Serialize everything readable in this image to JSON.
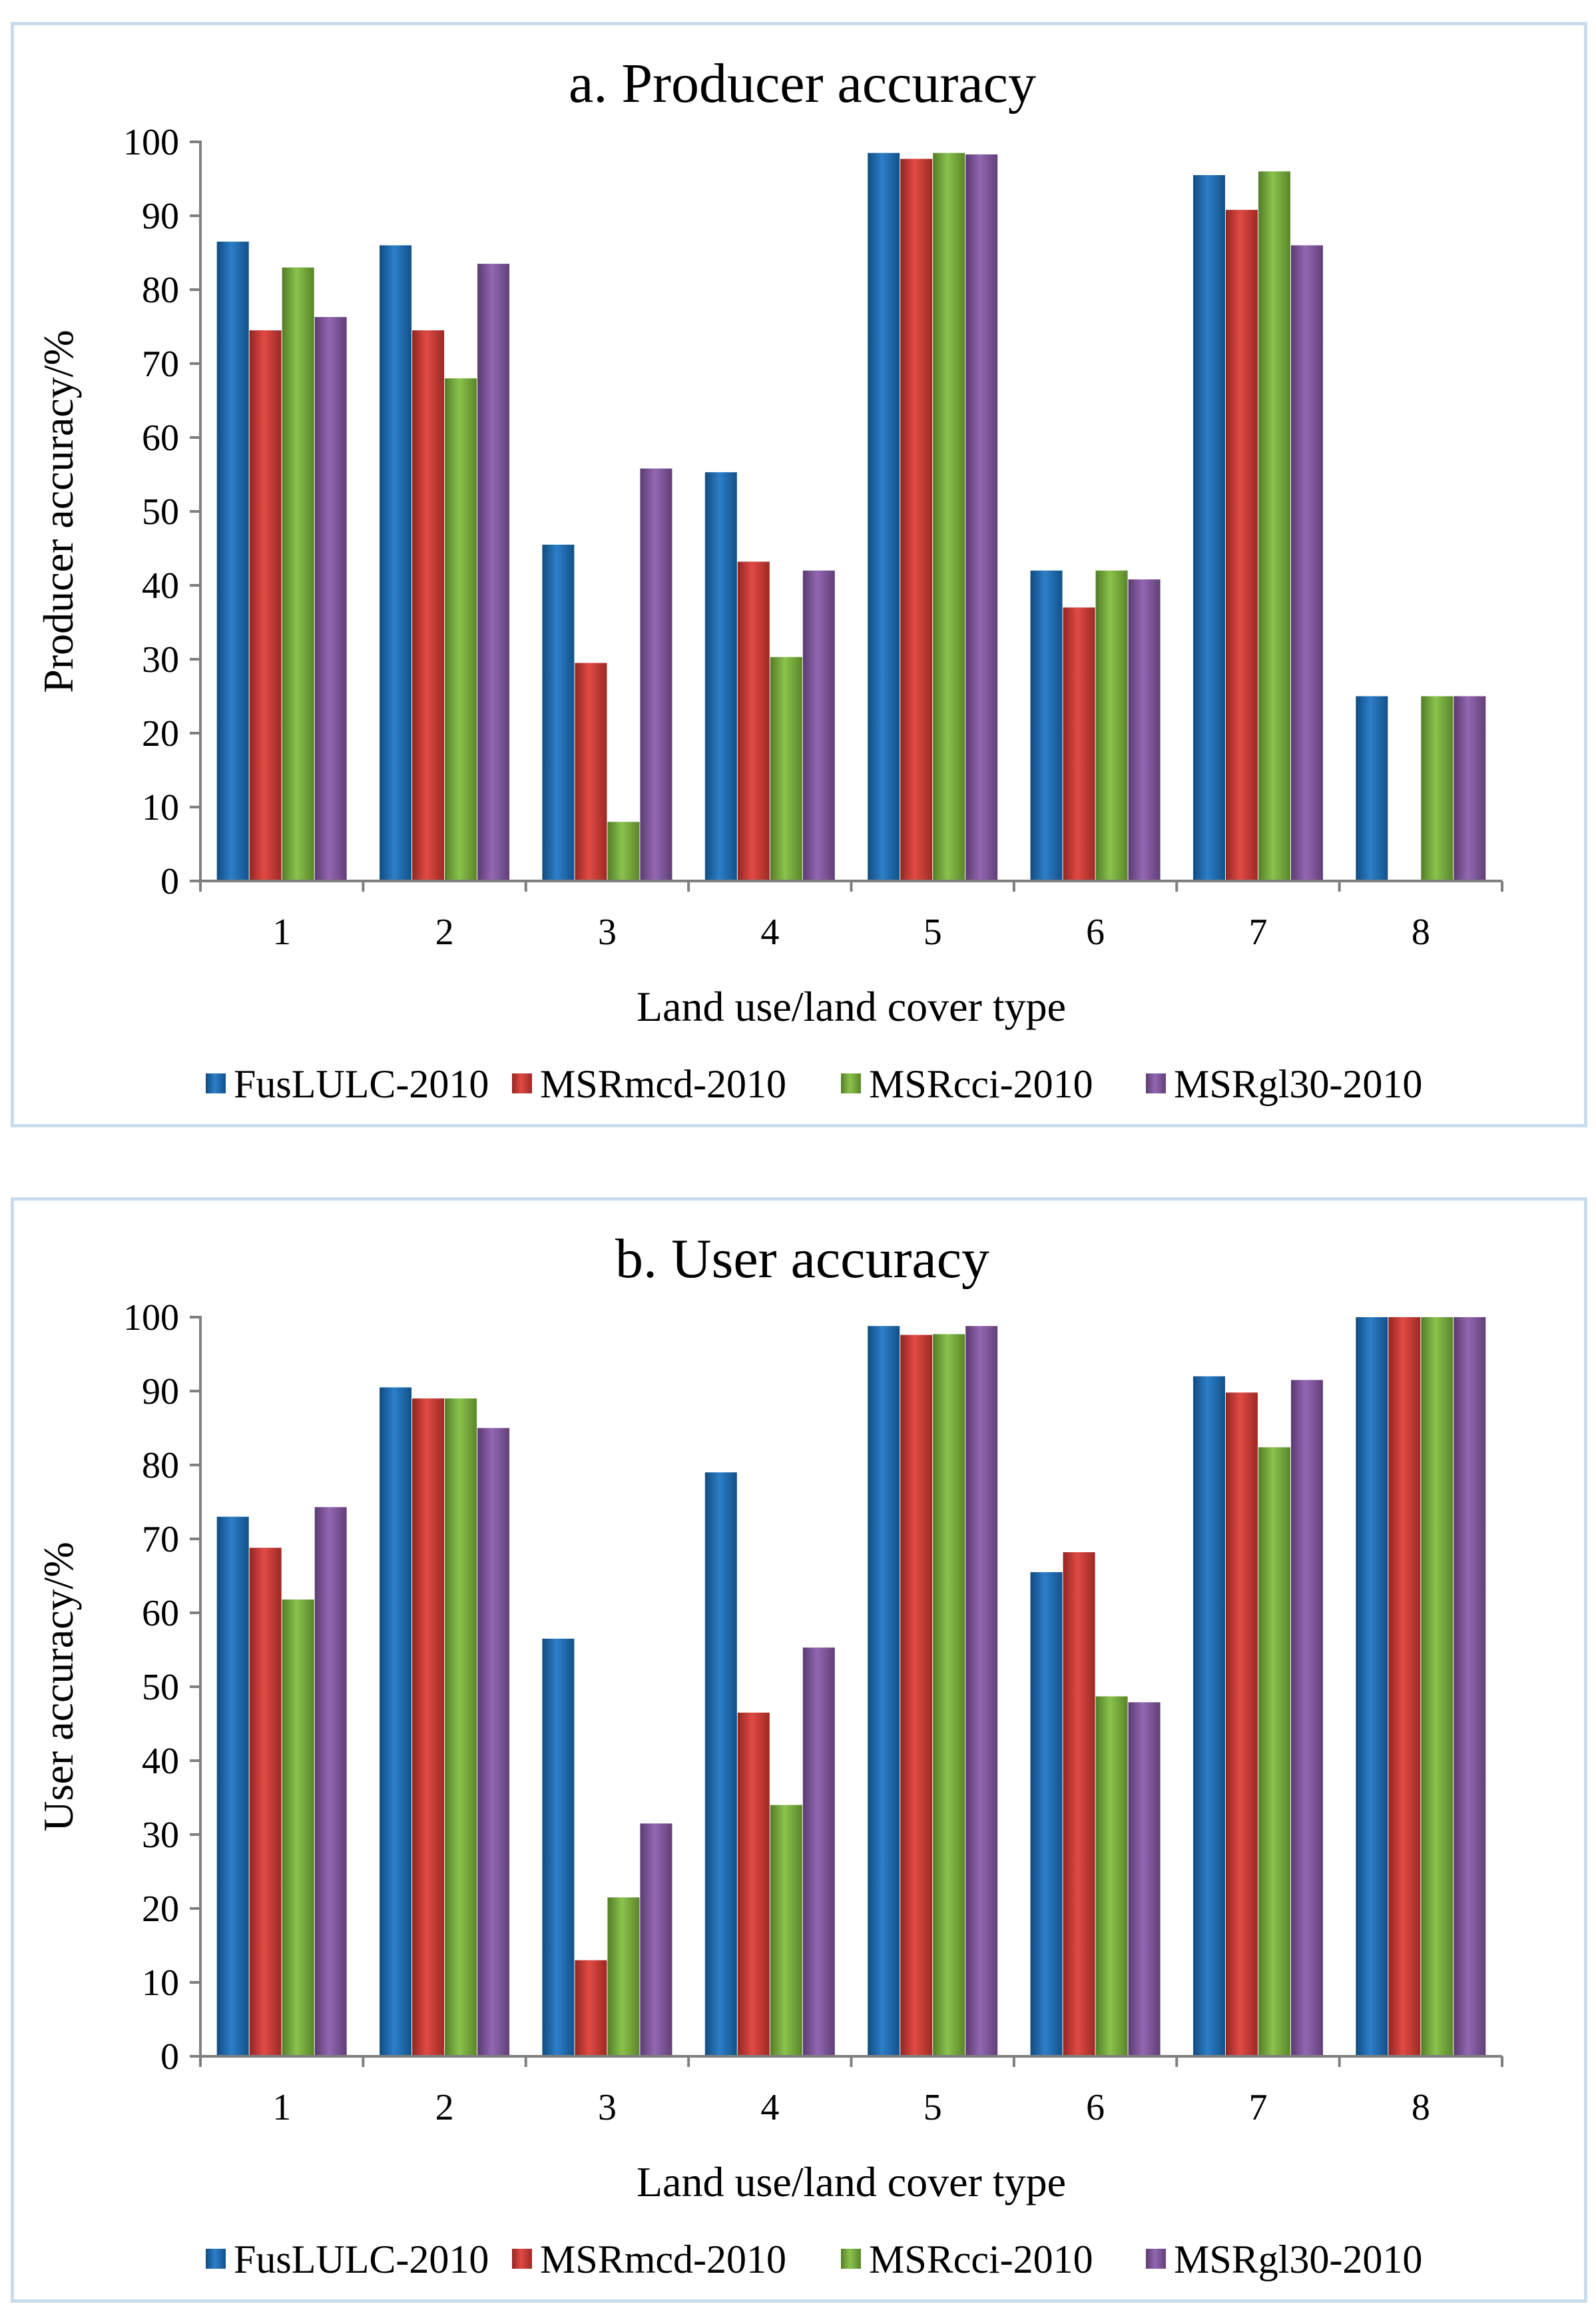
{
  "colors": {
    "fus": "#1a74c4",
    "mcd": "#e03a34",
    "cci": "#80be3c",
    "gl30": "#8a5aab",
    "axis": "#7f7f7f",
    "border": "#c9dcec"
  },
  "chart_data": [
    {
      "type": "bar",
      "title": "a. Producer accuracy",
      "xlabel": "Land use/land cover type",
      "ylabel": "Producer accuracy/%",
      "ylim": [
        0,
        100
      ],
      "yticks": [
        "0",
        "10",
        "20",
        "30",
        "40",
        "50",
        "60",
        "70",
        "80",
        "90",
        "100"
      ],
      "categories": [
        "1",
        "2",
        "3",
        "4",
        "5",
        "6",
        "7",
        "8"
      ],
      "legend_position": "bottom",
      "series": [
        {
          "name": "FusLULC-2010",
          "color_key": "fus",
          "values": [
            86.5,
            86,
            45.5,
            55.3,
            98.5,
            42,
            95.5,
            25
          ]
        },
        {
          "name": "MSRmcd-2010",
          "color_key": "mcd",
          "values": [
            74.5,
            74.5,
            29.5,
            43.2,
            97.7,
            37,
            90.8,
            0
          ]
        },
        {
          "name": "MSRcci-2010",
          "color_key": "cci",
          "values": [
            83,
            68,
            8,
            30.3,
            98.5,
            42,
            96,
            25
          ]
        },
        {
          "name": "MSRgl30-2010",
          "color_key": "gl30",
          "values": [
            76.3,
            83.5,
            55.8,
            42,
            98.3,
            40.8,
            86,
            25
          ]
        }
      ]
    },
    {
      "type": "bar",
      "title": "b. User accuracy",
      "xlabel": "Land use/land cover type",
      "ylabel": "User accuracy/%",
      "ylim": [
        0,
        100
      ],
      "yticks": [
        "0",
        "10",
        "20",
        "30",
        "40",
        "50",
        "60",
        "70",
        "80",
        "90",
        "100"
      ],
      "categories": [
        "1",
        "2",
        "3",
        "4",
        "5",
        "6",
        "7",
        "8"
      ],
      "legend_position": "bottom",
      "series": [
        {
          "name": "FusLULC-2010",
          "color_key": "fus",
          "values": [
            73,
            90.5,
            56.5,
            79,
            98.8,
            65.5,
            92,
            100
          ]
        },
        {
          "name": "MSRmcd-2010",
          "color_key": "mcd",
          "values": [
            68.8,
            89,
            13,
            46.5,
            97.6,
            68.2,
            89.8,
            100
          ]
        },
        {
          "name": "MSRcci-2010",
          "color_key": "cci",
          "values": [
            61.8,
            89,
            21.5,
            34,
            97.7,
            48.7,
            82.4,
            100
          ]
        },
        {
          "name": "MSRgl30-2010",
          "color_key": "gl30",
          "values": [
            74.3,
            85,
            31.5,
            55.3,
            98.8,
            47.9,
            91.5,
            100
          ]
        }
      ]
    }
  ]
}
